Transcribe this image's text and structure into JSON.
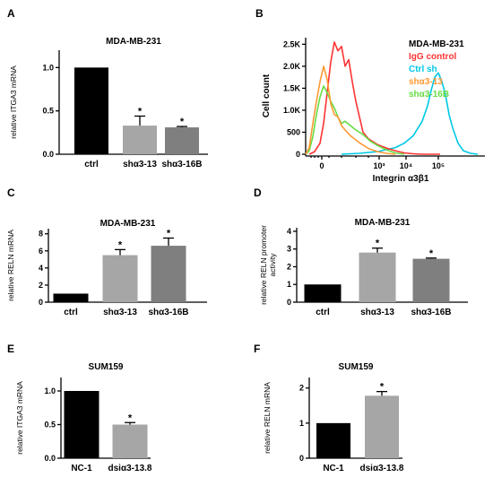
{
  "chart_data": [
    {
      "panel": "A",
      "type": "bar",
      "title": "MDA-MB-231",
      "ylabel": "relative ITGA3 mRNA",
      "categories": [
        "ctrl",
        "shα3-13",
        "shα3-16B"
      ],
      "values": [
        1.0,
        0.33,
        0.31
      ],
      "errors": [
        0,
        0.11,
        0.01
      ],
      "significance": [
        "",
        "*",
        "*"
      ],
      "colors": [
        "#000000",
        "#a6a6a6",
        "#7f7f7f"
      ],
      "ylim": [
        0,
        1.2
      ],
      "yticks": [
        0.0,
        0.5,
        1.0
      ],
      "ytick_labels": [
        "0.0",
        "0.5",
        "1.0"
      ]
    },
    {
      "panel": "B",
      "type": "line",
      "xlabel": "Integrin α3β1",
      "ylabel": "Cell count",
      "yticks": [
        0,
        500,
        1000,
        1500,
        2000,
        2500
      ],
      "ytick_labels": [
        "0",
        "500",
        "1.0K",
        "1.5K",
        "2.0K",
        "2.5K"
      ],
      "xtick_labels": [
        "0",
        "10³",
        "10⁴",
        "10⁵"
      ],
      "legend_title": "MDA-MB-231",
      "legend_position": "top-right",
      "series": [
        {
          "name": "IgG control",
          "color": "#ff3333",
          "x": [
            0.02,
            0.05,
            0.08,
            0.1,
            0.12,
            0.14,
            0.16,
            0.18,
            0.2,
            0.22,
            0.24,
            0.26,
            0.28,
            0.3,
            0.32,
            0.35,
            0.4,
            0.45,
            0.5,
            0.55,
            0.6,
            0.65,
            0.7,
            0.75
          ],
          "y": [
            0,
            60,
            250,
            700,
            1400,
            2100,
            2550,
            2350,
            2450,
            2000,
            2150,
            1650,
            1200,
            850,
            500,
            350,
            220,
            140,
            80,
            30,
            10,
            0,
            0,
            0
          ]
        },
        {
          "name": "Ctrl sh",
          "color": "#00c8e6",
          "x": [
            0.2,
            0.3,
            0.4,
            0.5,
            0.55,
            0.6,
            0.65,
            0.68,
            0.7,
            0.72,
            0.74,
            0.76,
            0.78,
            0.8,
            0.82,
            0.85,
            0.88,
            0.92,
            0.96
          ],
          "y": [
            0,
            20,
            60,
            150,
            250,
            420,
            750,
            1100,
            1450,
            1750,
            1850,
            1650,
            1350,
            900,
            600,
            250,
            80,
            20,
            0
          ]
        },
        {
          "name": "shα3-13",
          "color": "#ff9933",
          "x": [
            0.0,
            0.02,
            0.04,
            0.06,
            0.08,
            0.1,
            0.12,
            0.14,
            0.16,
            0.18,
            0.2,
            0.22,
            0.25,
            0.3,
            0.35,
            0.4,
            0.45,
            0.5
          ],
          "y": [
            0,
            150,
            700,
            1200,
            1650,
            2000,
            1700,
            1150,
            900,
            850,
            650,
            550,
            420,
            260,
            130,
            60,
            20,
            0
          ]
        },
        {
          "name": "shα3-16B",
          "color": "#66dd44",
          "x": [
            0.0,
            0.02,
            0.04,
            0.06,
            0.08,
            0.1,
            0.12,
            0.14,
            0.16,
            0.18,
            0.2,
            0.22,
            0.25,
            0.28,
            0.32,
            0.36,
            0.4,
            0.45,
            0.5,
            0.55
          ],
          "y": [
            0,
            80,
            400,
            900,
            1300,
            1550,
            1400,
            1200,
            1050,
            850,
            700,
            750,
            650,
            550,
            450,
            300,
            200,
            100,
            30,
            0
          ]
        }
      ]
    },
    {
      "panel": "C",
      "type": "bar",
      "title": "MDA-MB-231",
      "ylabel": "relative RELN mRNA",
      "categories": [
        "ctrl",
        "shα3-13",
        "shα3-16B"
      ],
      "values": [
        1.0,
        5.5,
        6.6
      ],
      "errors": [
        0,
        0.65,
        0.9
      ],
      "significance": [
        "",
        "*",
        "*"
      ],
      "colors": [
        "#000000",
        "#a6a6a6",
        "#7f7f7f"
      ],
      "ylim": [
        0,
        8.6
      ],
      "yticks": [
        0,
        2,
        4,
        6,
        8
      ],
      "ytick_labels": [
        "0",
        "2",
        "4",
        "6",
        "8"
      ]
    },
    {
      "panel": "D",
      "type": "bar",
      "title": "MDA-MB-231",
      "ylabel": "relative RELN promoter activity",
      "categories": [
        "ctrl",
        "shα3-13",
        "shα3-16B"
      ],
      "values": [
        1.0,
        2.8,
        2.45
      ],
      "errors": [
        0,
        0.25,
        0.04
      ],
      "significance": [
        "",
        "*",
        "*"
      ],
      "colors": [
        "#000000",
        "#a6a6a6",
        "#7f7f7f"
      ],
      "ylim": [
        0,
        4.2
      ],
      "yticks": [
        0,
        1,
        2,
        3,
        4
      ],
      "ytick_labels": [
        "0",
        "1",
        "2",
        "3",
        "4"
      ]
    },
    {
      "panel": "E",
      "type": "bar",
      "title": "SUM159",
      "ylabel": "relative ITGA3 mRNA",
      "categories": [
        "NC-1",
        "dsiα3-13.8"
      ],
      "values": [
        1.0,
        0.5
      ],
      "errors": [
        0,
        0.03
      ],
      "significance": [
        "",
        "*"
      ],
      "colors": [
        "#000000",
        "#a6a6a6"
      ],
      "ylim": [
        0,
        1.2
      ],
      "yticks": [
        0.0,
        0.5,
        1.0
      ],
      "ytick_labels": [
        "0.0",
        "0.5",
        "1.0"
      ]
    },
    {
      "panel": "F",
      "type": "bar",
      "title": "SUM159",
      "ylabel": "relative RELN mRNA",
      "categories": [
        "NC-1",
        "dsiα3-13.8"
      ],
      "values": [
        1.0,
        1.78
      ],
      "errors": [
        0,
        0.12
      ],
      "significance": [
        "",
        "*"
      ],
      "colors": [
        "#000000",
        "#a6a6a6"
      ],
      "ylim": [
        0,
        2.3
      ],
      "yticks": [
        0,
        1,
        2
      ],
      "ytick_labels": [
        "0",
        "1",
        "2"
      ]
    }
  ]
}
